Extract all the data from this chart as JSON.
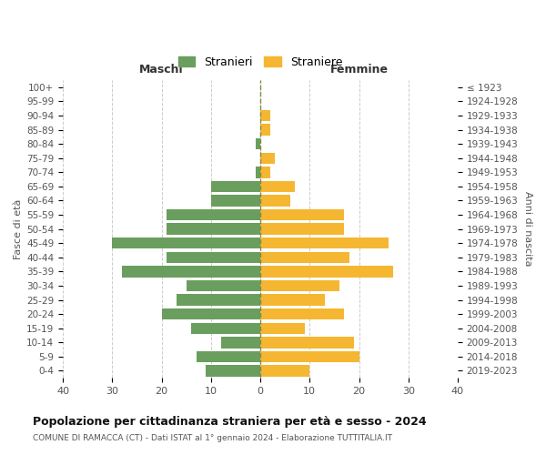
{
  "age_groups": [
    "0-4",
    "5-9",
    "10-14",
    "15-19",
    "20-24",
    "25-29",
    "30-34",
    "35-39",
    "40-44",
    "45-49",
    "50-54",
    "55-59",
    "60-64",
    "65-69",
    "70-74",
    "75-79",
    "80-84",
    "85-89",
    "90-94",
    "95-99",
    "100+"
  ],
  "birth_years": [
    "2019-2023",
    "2014-2018",
    "2009-2013",
    "2004-2008",
    "1999-2003",
    "1994-1998",
    "1989-1993",
    "1984-1988",
    "1979-1983",
    "1974-1978",
    "1969-1973",
    "1964-1968",
    "1959-1963",
    "1954-1958",
    "1949-1953",
    "1944-1948",
    "1939-1943",
    "1934-1938",
    "1929-1933",
    "1924-1928",
    "≤ 1923"
  ],
  "maschi": [
    11,
    13,
    8,
    14,
    20,
    17,
    15,
    28,
    19,
    30,
    19,
    19,
    10,
    10,
    1,
    0,
    1,
    0,
    0,
    0,
    0
  ],
  "femmine": [
    10,
    20,
    19,
    9,
    17,
    13,
    16,
    27,
    18,
    26,
    17,
    17,
    6,
    7,
    2,
    3,
    0,
    2,
    2,
    0,
    0
  ],
  "color_maschi": "#6a9e5e",
  "color_femmine": "#f5b731",
  "background_color": "#ffffff",
  "grid_color": "#cccccc",
  "title": "Popolazione per cittadinanza straniera per età e sesso - 2024",
  "subtitle": "COMUNE DI RAMACCA (CT) - Dati ISTAT al 1° gennaio 2024 - Elaborazione TUTTITALIA.IT",
  "xlabel_left": "Maschi",
  "xlabel_right": "Femmine",
  "ylabel_left": "Fasce di età",
  "ylabel_right": "Anni di nascita",
  "legend_maschi": "Stranieri",
  "legend_femmine": "Straniere",
  "xlim": 40
}
